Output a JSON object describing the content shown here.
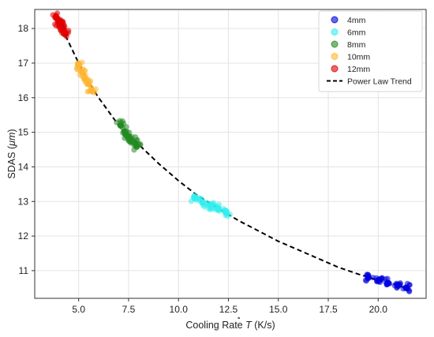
{
  "chart_data": {
    "type": "scatter",
    "xlabel": "Cooling Rate $\\dot{T}$ (K/s)",
    "xlabel_text": "Cooling Rate",
    "xlabel_symbol": "T",
    "xlabel_unit": "(K/s)",
    "ylabel": "SDAS ($\\mu m$)",
    "xlim": [
      2.8,
      22.4
    ],
    "ylim": [
      10.2,
      18.55
    ],
    "xticks": [
      5.0,
      7.5,
      10.0,
      12.5,
      15.0,
      17.5,
      20.0
    ],
    "xtick_labels": [
      "5.0",
      "7.5",
      "10.0",
      "12.5",
      "15.0",
      "17.5",
      "20.0"
    ],
    "yticks": [
      11,
      12,
      13,
      14,
      15,
      16,
      17,
      18
    ],
    "ytick_labels": [
      "11",
      "12",
      "13",
      "14",
      "15",
      "16",
      "17",
      "18"
    ],
    "grid": true,
    "legend_position": "top-right",
    "series": [
      {
        "name": "4mm",
        "color": "#0000dd",
        "x": [
          19.5,
          20.0,
          20.5,
          21.0,
          21.4
        ],
        "y": [
          10.8,
          10.72,
          10.64,
          10.57,
          10.5
        ]
      },
      {
        "name": "6mm",
        "color": "#33eeee",
        "x": [
          10.8,
          11.2,
          11.6,
          12.0,
          12.4
        ],
        "y": [
          13.1,
          12.98,
          12.87,
          12.77,
          12.68
        ]
      },
      {
        "name": "8mm",
        "color": "#228b22",
        "x": [
          7.1,
          7.3,
          7.5,
          7.7,
          7.9
        ],
        "y": [
          15.2,
          15.02,
          14.88,
          14.74,
          14.6
        ]
      },
      {
        "name": "10mm",
        "color": "#ffb733",
        "x": [
          5.0,
          5.15,
          5.3,
          5.45,
          5.65
        ],
        "y": [
          16.95,
          16.75,
          16.55,
          16.4,
          16.2
        ]
      },
      {
        "name": "12mm",
        "color": "#e00000",
        "x": [
          3.9,
          4.0,
          4.1,
          4.2,
          4.35
        ],
        "y": [
          18.3,
          18.2,
          18.08,
          17.98,
          17.85
        ]
      }
    ],
    "trend": {
      "name": "Power Law Trend",
      "color": "#000000",
      "style": "dashed",
      "x": [
        4.0,
        4.5,
        5.0,
        5.5,
        6.0,
        7.0,
        8.0,
        9.0,
        10.0,
        11.0,
        12.0,
        13.0,
        14.0,
        15.0,
        16.0,
        17.0,
        18.0,
        19.0,
        20.0,
        21.0,
        21.4
      ],
      "y": [
        18.2,
        17.6,
        17.0,
        16.45,
        16.0,
        15.2,
        14.65,
        14.1,
        13.6,
        13.15,
        12.8,
        12.45,
        12.15,
        11.85,
        11.6,
        11.35,
        11.1,
        10.9,
        10.72,
        10.57,
        10.5
      ]
    }
  }
}
